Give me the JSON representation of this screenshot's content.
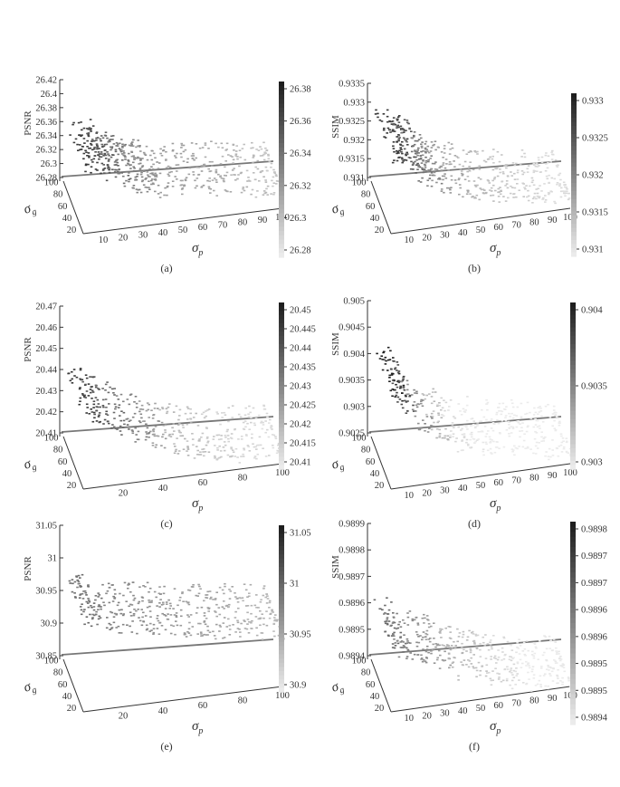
{
  "figure": {
    "panels": [
      {
        "id": "a",
        "caption": "(a)",
        "zlabel": "PSNR",
        "xlabel": "σp",
        "ylabel": "σg",
        "zticks": [
          "26.42",
          "26.4",
          "26.38",
          "26.36",
          "26.34",
          "26.32",
          "26.3",
          "26.28"
        ],
        "xticks": [
          "10",
          "20",
          "30",
          "40",
          "50",
          "60",
          "70",
          "80",
          "90",
          "100"
        ],
        "yticks": [
          "100",
          "80",
          "60",
          "40",
          "20"
        ],
        "colorbar": [
          "26.38",
          "26.36",
          "26.34",
          "26.32",
          "26.3",
          "26.28"
        ]
      },
      {
        "id": "b",
        "caption": "(b)",
        "zlabel": "SSIM",
        "xlabel": "σp",
        "ylabel": "σg",
        "zticks": [
          "0.9335",
          "0.933",
          "0.9325",
          "0.932",
          "0.9315",
          "0.931"
        ],
        "xticks": [
          "10",
          "20",
          "30",
          "40",
          "50",
          "60",
          "70",
          "80",
          "90",
          "100"
        ],
        "yticks": [
          "100",
          "80",
          "60",
          "40",
          "20"
        ],
        "colorbar": [
          "0.933",
          "0.9325",
          "0.932",
          "0.9315",
          "0.931"
        ]
      },
      {
        "id": "c",
        "caption": "(c)",
        "zlabel": "PSNR",
        "xlabel": "σp",
        "ylabel": "σg",
        "zticks": [
          "20.47",
          "20.46",
          "20.45",
          "20.44",
          "20.43",
          "20.42",
          "20.41"
        ],
        "xticks": [
          "20",
          "40",
          "60",
          "80",
          "100"
        ],
        "yticks": [
          "100",
          "80",
          "60",
          "40",
          "20"
        ],
        "colorbar": [
          "20.45",
          "20.445",
          "20.44",
          "20.435",
          "20.43",
          "20.425",
          "20.42",
          "20.415",
          "20.41"
        ]
      },
      {
        "id": "d",
        "caption": "(d)",
        "zlabel": "SSIM",
        "xlabel": "σp",
        "ylabel": "σg",
        "zticks": [
          "0.905",
          "0.9045",
          "0.904",
          "0.9035",
          "0.903",
          "0.9025"
        ],
        "xticks": [
          "10",
          "20",
          "30",
          "40",
          "50",
          "60",
          "70",
          "80",
          "90",
          "100"
        ],
        "yticks": [
          "100",
          "80",
          "60",
          "40",
          "20"
        ],
        "colorbar": [
          "0.904",
          "0.9035",
          "0.903"
        ]
      },
      {
        "id": "e",
        "caption": "(e)",
        "zlabel": "PSNR",
        "xlabel": "σp",
        "ylabel": "σg",
        "zticks": [
          "31.05",
          "31",
          "30.95",
          "30.9",
          "30.85"
        ],
        "xticks": [
          "20",
          "40",
          "60",
          "80",
          "100"
        ],
        "yticks": [
          "100",
          "80",
          "60",
          "40",
          "20"
        ],
        "colorbar": [
          "31.05",
          "31",
          "30.95",
          "30.9"
        ]
      },
      {
        "id": "f",
        "caption": "(f)",
        "zlabel": "SSIM",
        "xlabel": "σp",
        "ylabel": "σg",
        "zticks": [
          "0.9899",
          "0.9898",
          "0.9897",
          "0.9896",
          "0.9895",
          "0.9894"
        ],
        "xticks": [
          "10",
          "20",
          "30",
          "40",
          "50",
          "60",
          "70",
          "80",
          "90",
          "100"
        ],
        "yticks": [
          "100",
          "80",
          "60",
          "40",
          "20"
        ],
        "colorbar": [
          "0.9898",
          "0.9897",
          "0.9897",
          "0.9896",
          "0.9896",
          "0.9895",
          "0.9895",
          "0.9894"
        ]
      }
    ]
  },
  "chart_data": [
    {
      "type": "scatter",
      "panel": "a",
      "title": "",
      "xlabel": "σp",
      "ylabel": "σg",
      "zlabel": "PSNR",
      "xlim": [
        0,
        100
      ],
      "ylim": [
        0,
        100
      ],
      "zlim": [
        26.28,
        26.42
      ],
      "colorbar_range": [
        26.28,
        26.39
      ],
      "colormap": "gray (dark = high)",
      "grid": false,
      "series": [
        {
          "x": [
            5,
            10,
            15,
            20,
            25,
            30,
            35,
            40,
            50,
            60,
            70,
            80,
            90,
            100
          ],
          "z": [
            26.375,
            26.37,
            26.36,
            26.35,
            26.34,
            26.335,
            26.33,
            26.325,
            26.32,
            26.32,
            26.315,
            26.31,
            26.305,
            26.3
          ]
        }
      ]
    },
    {
      "type": "scatter",
      "panel": "b",
      "title": "",
      "xlabel": "σp",
      "ylabel": "σg",
      "zlabel": "SSIM",
      "xlim": [
        0,
        100
      ],
      "ylim": [
        0,
        100
      ],
      "zlim": [
        0.931,
        0.9335
      ],
      "colorbar_range": [
        0.931,
        0.9334
      ],
      "colormap": "gray (dark = high)",
      "grid": false,
      "series": [
        {
          "x": [
            5,
            10,
            15,
            20,
            25,
            30,
            40,
            50,
            60,
            70,
            80,
            90,
            100
          ],
          "z": [
            0.9331,
            0.933,
            0.9327,
            0.9324,
            0.9322,
            0.932,
            0.9318,
            0.9316,
            0.9315,
            0.9314,
            0.9313,
            0.9312,
            0.9312
          ]
        }
      ]
    },
    {
      "type": "scatter",
      "panel": "c",
      "title": "",
      "xlabel": "σp",
      "ylabel": "σg",
      "zlabel": "PSNR",
      "xlim": [
        0,
        100
      ],
      "ylim": [
        0,
        100
      ],
      "zlim": [
        20.41,
        20.47
      ],
      "colorbar_range": [
        20.41,
        20.45
      ],
      "colormap": "gray (dark = high)",
      "grid": false,
      "series": [
        {
          "x": [
            5,
            10,
            20,
            30,
            40,
            50,
            60,
            70,
            80,
            90,
            100
          ],
          "z": [
            20.445,
            20.44,
            20.435,
            20.43,
            20.425,
            20.42,
            20.418,
            20.416,
            20.415,
            20.414,
            20.413
          ]
        }
      ]
    },
    {
      "type": "scatter",
      "panel": "d",
      "title": "",
      "xlabel": "σp",
      "ylabel": "σg",
      "zlabel": "SSIM",
      "xlim": [
        0,
        100
      ],
      "ylim": [
        0,
        100
      ],
      "zlim": [
        0.9025,
        0.905
      ],
      "colorbar_range": [
        0.903,
        0.9043
      ],
      "colormap": "gray (dark = high)",
      "grid": false,
      "series": [
        {
          "x": [
            5,
            10,
            20,
            30,
            40,
            50,
            60,
            70,
            80,
            90,
            100
          ],
          "z": [
            0.9043,
            0.904,
            0.9036,
            0.9033,
            0.9031,
            0.903,
            0.9029,
            0.9028,
            0.9028,
            0.9027,
            0.9027
          ]
        }
      ]
    },
    {
      "type": "scatter",
      "panel": "e",
      "title": "",
      "xlabel": "σp",
      "ylabel": "σg",
      "zlabel": "PSNR",
      "xlim": [
        0,
        100
      ],
      "ylim": [
        0,
        100
      ],
      "zlim": [
        30.85,
        31.05
      ],
      "colorbar_range": [
        30.89,
        31.05
      ],
      "colormap": "gray (dark = high)",
      "grid": false,
      "series": [
        {
          "x": [
            5,
            10,
            20,
            30,
            40,
            50,
            60,
            70,
            80,
            90,
            100
          ],
          "z": [
            30.99,
            30.98,
            30.97,
            30.965,
            30.96,
            30.955,
            30.95,
            30.945,
            30.94,
            30.935,
            30.93
          ]
        }
      ]
    },
    {
      "type": "scatter",
      "panel": "f",
      "title": "",
      "xlabel": "σp",
      "ylabel": "σg",
      "zlabel": "SSIM",
      "xlim": [
        0,
        100
      ],
      "ylim": [
        0,
        100
      ],
      "zlim": [
        0.9894,
        0.9899
      ],
      "colorbar_range": [
        0.9894,
        0.9898
      ],
      "colormap": "gray (dark = high)",
      "grid": false,
      "series": [
        {
          "x": [
            5,
            10,
            20,
            30,
            40,
            50,
            60,
            70,
            80,
            90,
            100
          ],
          "z": [
            0.98965,
            0.9896,
            0.98958,
            0.98955,
            0.9895,
            0.98948,
            0.98945,
            0.98943,
            0.9894,
            0.9894,
            0.9894
          ]
        }
      ]
    }
  ]
}
